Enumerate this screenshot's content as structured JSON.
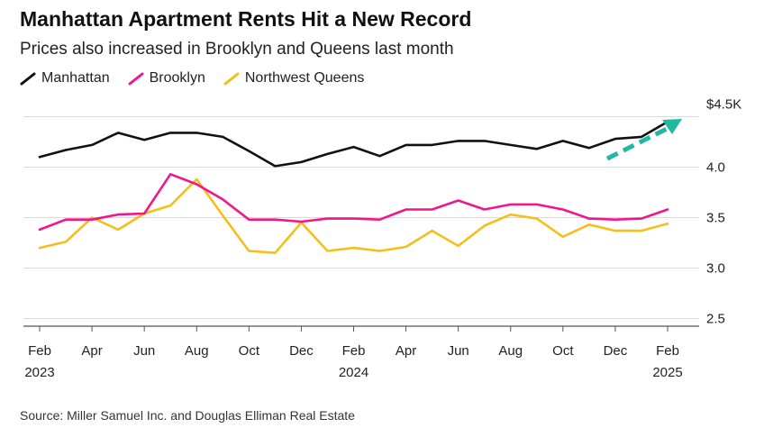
{
  "title": "Manhattan Apartment Rents Hit a New Record",
  "subtitle": "Prices also increased in Brooklyn and Queens last month",
  "source": "Source: Miller Samuel Inc. and Douglas Elliman Real Estate",
  "colors": {
    "manhattan": "#111111",
    "brooklyn": "#f0168c",
    "queens": "#f5bf1a",
    "arrow": "#1fb9a3",
    "grid": "#d9d9d9",
    "axis": "#555555"
  },
  "chart_data": {
    "type": "line",
    "title": "Manhattan Apartment Rents Hit a New Record",
    "subtitle": "Prices also increased in Brooklyn and Queens last month",
    "ylabel": "",
    "xlabel": "",
    "ylim": [
      2.25,
      4.55
    ],
    "y_unit": "$K",
    "y_ticks": [
      {
        "value": 4.5,
        "label": "$4.5K"
      },
      {
        "value": 4.0,
        "label": "4.0"
      },
      {
        "value": 3.5,
        "label": "3.5"
      },
      {
        "value": 3.0,
        "label": "3.0"
      },
      {
        "value": 2.5,
        "label": "2.5"
      }
    ],
    "x_ticks": [
      {
        "index": 0,
        "label": "Feb",
        "year": "2023"
      },
      {
        "index": 2,
        "label": "Apr",
        "year": ""
      },
      {
        "index": 4,
        "label": "Jun",
        "year": ""
      },
      {
        "index": 6,
        "label": "Aug",
        "year": ""
      },
      {
        "index": 8,
        "label": "Oct",
        "year": ""
      },
      {
        "index": 10,
        "label": "Dec",
        "year": ""
      },
      {
        "index": 12,
        "label": "Feb",
        "year": "2024"
      },
      {
        "index": 14,
        "label": "Apr",
        "year": ""
      },
      {
        "index": 16,
        "label": "Jun",
        "year": ""
      },
      {
        "index": 18,
        "label": "Aug",
        "year": ""
      },
      {
        "index": 20,
        "label": "Oct",
        "year": ""
      },
      {
        "index": 22,
        "label": "Dec",
        "year": ""
      },
      {
        "index": 24,
        "label": "Feb",
        "year": "2025"
      }
    ],
    "categories": [
      "Feb 2023",
      "Mar 2023",
      "Apr 2023",
      "May 2023",
      "Jun 2023",
      "Jul 2023",
      "Aug 2023",
      "Sep 2023",
      "Oct 2023",
      "Nov 2023",
      "Dec 2023",
      "Jan 2024",
      "Feb 2024",
      "Mar 2024",
      "Apr 2024",
      "May 2024",
      "Jun 2024",
      "Jul 2024",
      "Aug 2024",
      "Sep 2024",
      "Oct 2024",
      "Nov 2024",
      "Dec 2024",
      "Jan 2025",
      "Feb 2025"
    ],
    "series": [
      {
        "name": "Manhattan",
        "key": "manhattan",
        "values": [
          4.1,
          4.17,
          4.22,
          4.34,
          4.27,
          4.34,
          4.34,
          4.3,
          4.16,
          4.01,
          4.05,
          4.13,
          4.2,
          4.11,
          4.22,
          4.22,
          4.26,
          4.26,
          4.22,
          4.18,
          4.26,
          4.19,
          4.28,
          4.3,
          4.45
        ]
      },
      {
        "name": "Brooklyn",
        "key": "brooklyn",
        "values": [
          3.38,
          3.48,
          3.48,
          3.53,
          3.54,
          3.93,
          3.83,
          3.68,
          3.48,
          3.48,
          3.46,
          3.49,
          3.49,
          3.48,
          3.58,
          3.58,
          3.67,
          3.58,
          3.63,
          3.63,
          3.58,
          3.49,
          3.48,
          3.49,
          3.58
        ]
      },
      {
        "name": "Northwest Queens",
        "key": "queens",
        "values": [
          3.2,
          3.26,
          3.5,
          3.38,
          3.54,
          3.62,
          3.88,
          3.52,
          3.17,
          3.15,
          3.45,
          3.17,
          3.2,
          3.17,
          3.21,
          3.37,
          3.22,
          3.42,
          3.53,
          3.49,
          3.31,
          3.43,
          3.37,
          3.37,
          3.44
        ]
      }
    ]
  }
}
